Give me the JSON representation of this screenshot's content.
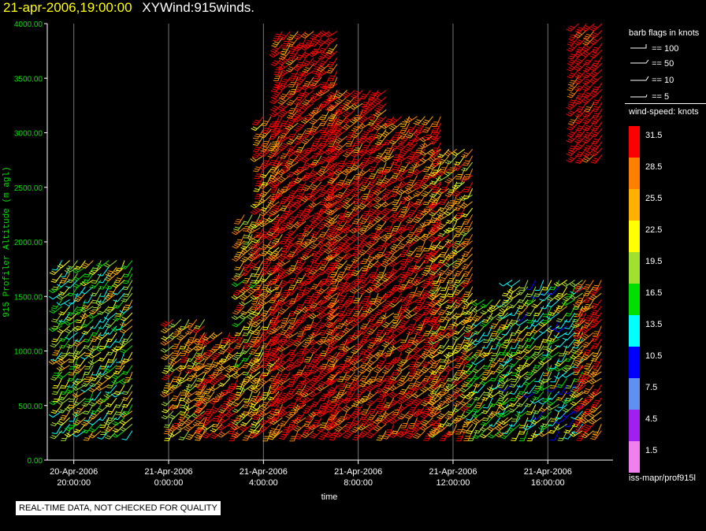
{
  "header": {
    "datetime": "21-apr-2006,19:00:00",
    "product": "XYWind:915winds."
  },
  "legend": {
    "flags_title": "barb flags in knots",
    "flags": [
      {
        "label": "== 100",
        "icon": "pennant-flag-icon"
      },
      {
        "label": "== 50",
        "icon": "triangle-flag-icon"
      },
      {
        "label": "== 10",
        "icon": "full-barb-icon"
      },
      {
        "label": "== 5",
        "icon": "half-barb-icon"
      }
    ],
    "speed_title": "wind-speed: knots",
    "swatches": [
      {
        "label": "31.5",
        "color": "#ff0000"
      },
      {
        "label": "28.5",
        "color": "#ff8000"
      },
      {
        "label": "25.5",
        "color": "#ffb000"
      },
      {
        "label": "22.5",
        "color": "#ffff00"
      },
      {
        "label": "19.5",
        "color": "#a0e030"
      },
      {
        "label": "16.5",
        "color": "#00e000"
      },
      {
        "label": "13.5",
        "color": "#00ffff"
      },
      {
        "label": "10.5",
        "color": "#0000ff"
      },
      {
        "label": "7.5",
        "color": "#6090f0"
      },
      {
        "label": "4.5",
        "color": "#a020f0"
      },
      {
        "label": "1.5",
        "color": "#f080f0"
      }
    ]
  },
  "footer": {
    "source": "iss-mapr/prof915l",
    "qc_note": "REAL-TIME DATA, NOT CHECKED FOR QUALITY"
  },
  "chart_data": {
    "type": "wind-barb time-height",
    "ylabel": "915 Profiler Altitude (m agl)",
    "xlabel": "time",
    "ylim": [
      0,
      4000
    ],
    "yticks": [
      "0.00",
      "500.00",
      "1000.00",
      "1500.00",
      "2000.00",
      "2500.00",
      "3000.00",
      "3500.00",
      "4000.00"
    ],
    "xticks": [
      {
        "line1": "20-Apr-2006",
        "line2": "20:00:00",
        "hour": 0
      },
      {
        "line1": "21-Apr-2006",
        "line2": "0:00:00",
        "hour": 4
      },
      {
        "line1": "21-Apr-2006",
        "line2": "4:00:00",
        "hour": 8
      },
      {
        "line1": "21-Apr-2006",
        "line2": "8:00:00",
        "hour": 12
      },
      {
        "line1": "21-Apr-2006",
        "line2": "12:00:00",
        "hour": 16
      },
      {
        "line1": "21-Apr-2006",
        "line2": "16:00:00",
        "hour": 20
      }
    ],
    "xlim_hours": [
      -1.12,
      22.75
    ],
    "grid": "vertical",
    "columns": [
      {
        "start": -0.5,
        "end": 2.8,
        "top": 1850,
        "speed": 20
      },
      {
        "start": 4.2,
        "end": 5.6,
        "top": 1300,
        "speed": 25
      },
      {
        "start": 5.6,
        "end": 7.2,
        "top": 1200,
        "speed": 30
      },
      {
        "start": 7.2,
        "end": 8.0,
        "top": 2300,
        "speed": 24
      },
      {
        "start": 8.0,
        "end": 8.8,
        "top": 3200,
        "speed": 29
      },
      {
        "start": 8.8,
        "end": 11.2,
        "top": 3950,
        "speed": 33
      },
      {
        "start": 11.2,
        "end": 13.5,
        "top": 3400,
        "speed": 32
      },
      {
        "start": 13.5,
        "end": 15.5,
        "top": 3200,
        "speed": 31
      },
      {
        "start": 15.5,
        "end": 17.0,
        "top": 2900,
        "speed": 26
      },
      {
        "start": 17.0,
        "end": 18.5,
        "top": 1500,
        "speed": 20
      },
      {
        "start": 18.5,
        "end": 21.6,
        "top": 1700,
        "speed": 18
      },
      {
        "start": 21.6,
        "end": 22.5,
        "top": 1700,
        "speed": 31
      }
    ],
    "upper_band": {
      "start": 21.3,
      "end": 22.3,
      "bottom": 2800,
      "top": 4000,
      "speed": 32
    }
  }
}
